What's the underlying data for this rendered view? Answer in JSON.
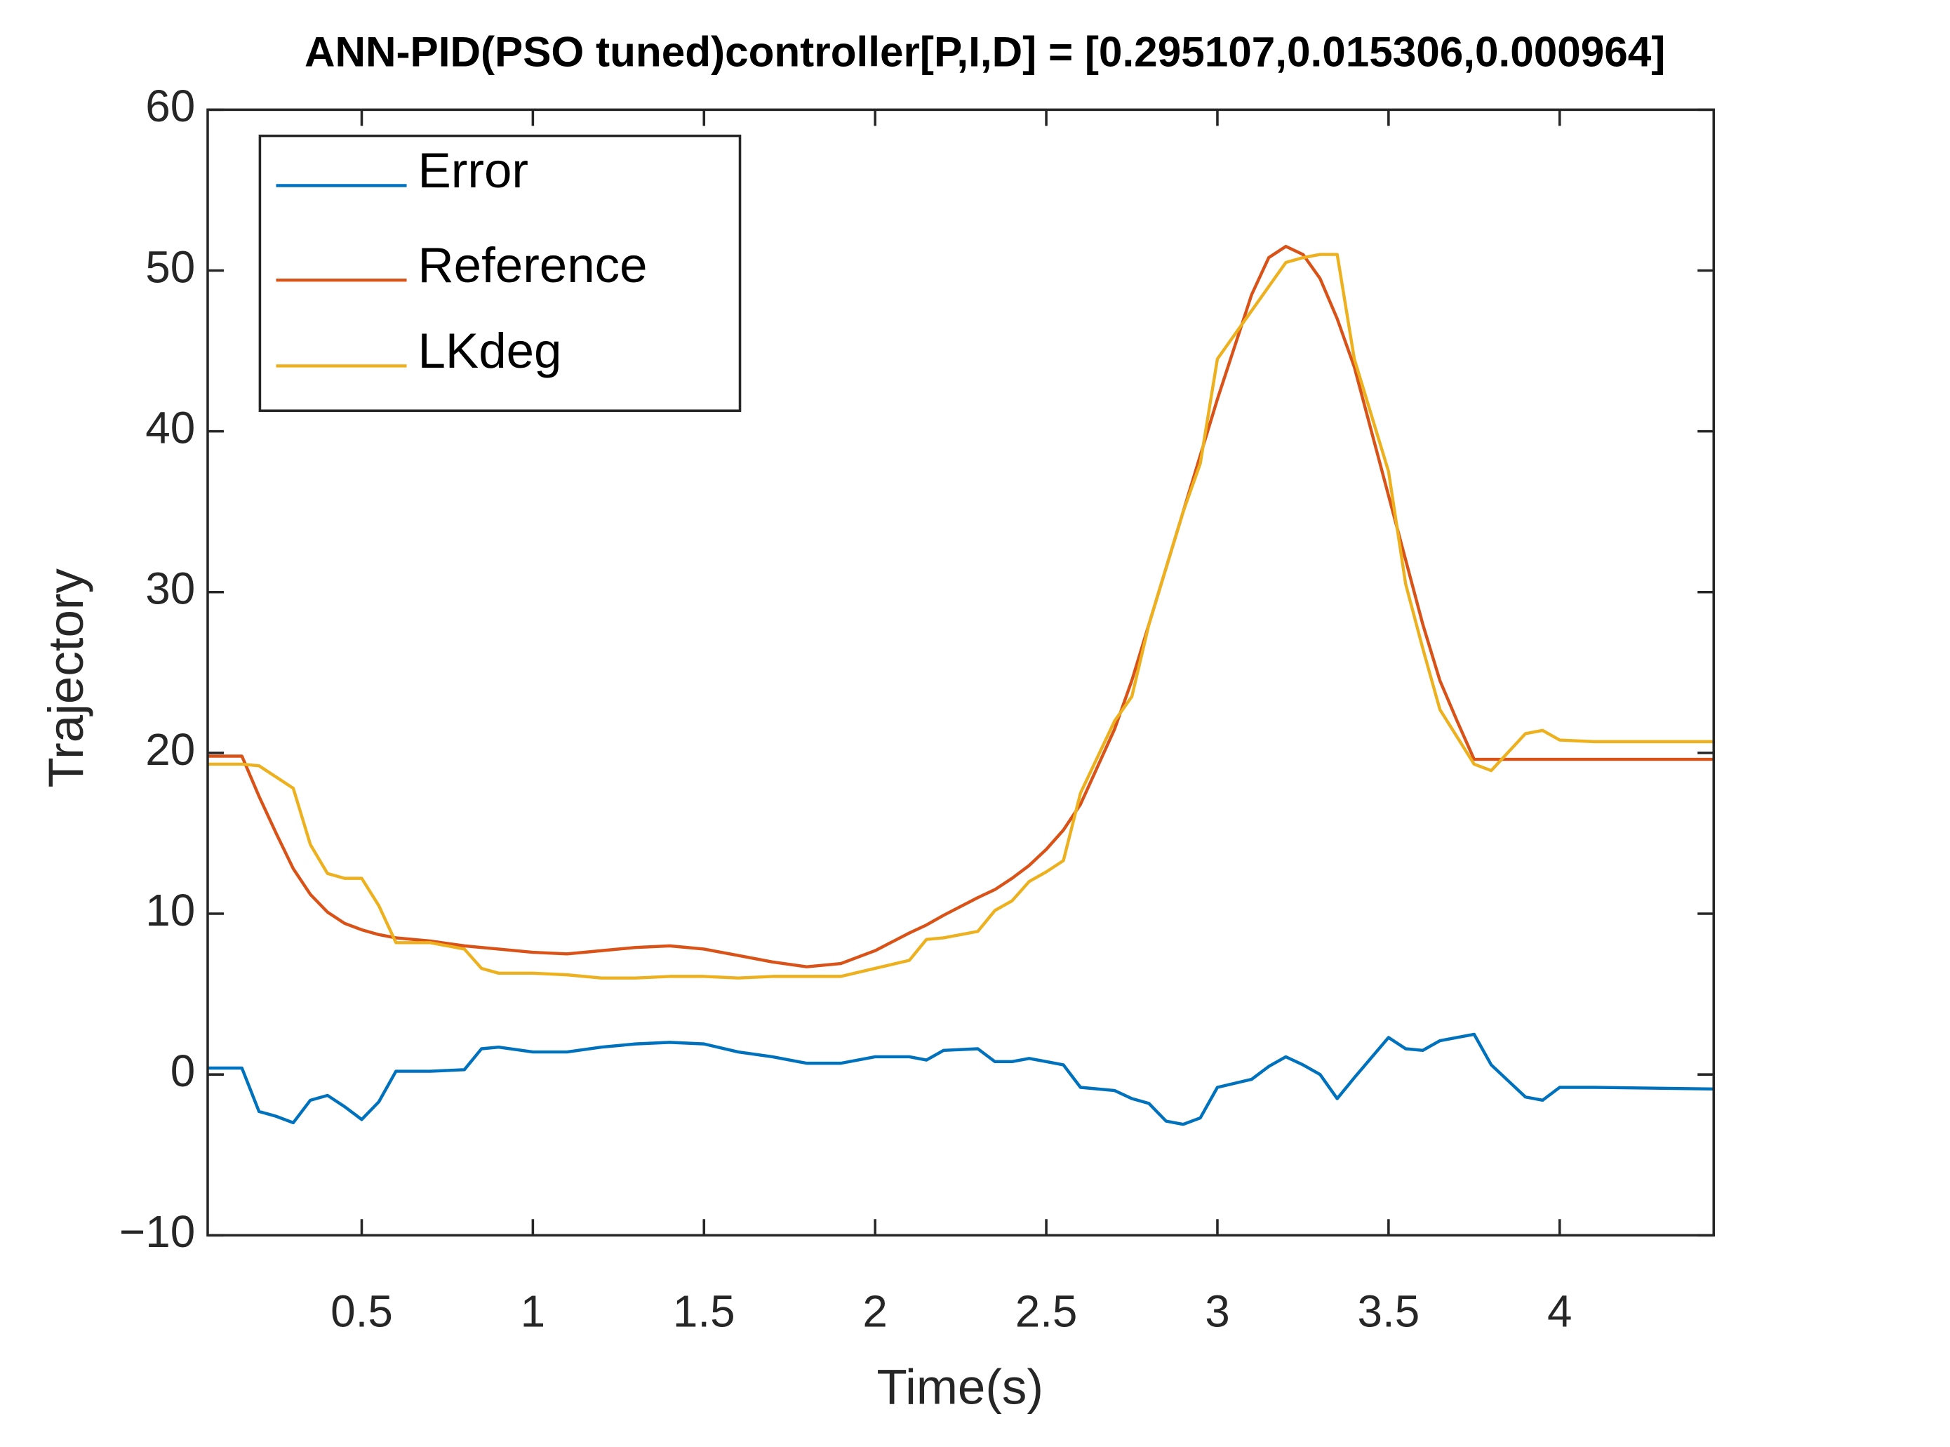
{
  "chart_data": {
    "type": "line",
    "title": "ANN-PID(PSO tuned)controller[P,I,D] = [0.295107,0.015306,0.000964]",
    "x_label": "Time(s)",
    "y_label": "Trajectory",
    "x": [
      0.05,
      0.15,
      0.2,
      0.25,
      0.3,
      0.35,
      0.4,
      0.45,
      0.5,
      0.55,
      0.6,
      0.7,
      0.8,
      0.85,
      0.9,
      1.0,
      1.1,
      1.2,
      1.3,
      1.4,
      1.5,
      1.6,
      1.7,
      1.8,
      1.9,
      2.0,
      2.1,
      2.15,
      2.2,
      2.3,
      2.35,
      2.4,
      2.45,
      2.5,
      2.55,
      2.6,
      2.7,
      2.75,
      2.8,
      2.85,
      2.9,
      2.95,
      3.0,
      3.1,
      3.15,
      3.2,
      3.25,
      3.3,
      3.35,
      3.4,
      3.5,
      3.55,
      3.6,
      3.65,
      3.7,
      3.75,
      3.8,
      3.9,
      3.95,
      4.0,
      4.1,
      4.45
    ],
    "series": [
      {
        "name": "Error",
        "color": "#0072BD",
        "values": [
          0.4,
          0.4,
          -2.3,
          -2.6,
          -3.0,
          -1.6,
          -1.3,
          -2.0,
          -2.8,
          -1.7,
          0.2,
          0.2,
          0.3,
          1.6,
          1.7,
          1.4,
          1.4,
          1.7,
          1.9,
          2.0,
          1.9,
          1.4,
          1.1,
          0.7,
          0.7,
          1.1,
          1.1,
          0.9,
          1.5,
          1.6,
          0.8,
          0.8,
          1.0,
          0.8,
          0.6,
          -0.8,
          -1.0,
          -1.5,
          -1.8,
          -2.9,
          -3.1,
          -2.7,
          -0.8,
          -0.3,
          0.5,
          1.1,
          0.6,
          0.0,
          -1.5,
          -0.2,
          2.3,
          1.6,
          1.5,
          2.1,
          2.3,
          2.5,
          0.6,
          -1.4,
          -1.6,
          -0.8,
          -0.8,
          -0.9
        ]
      },
      {
        "name": "Reference",
        "color": "#D95319",
        "values": [
          19.8,
          19.8,
          17.3,
          15,
          12.8,
          11.2,
          10.1,
          9.4,
          9.0,
          8.7,
          8.5,
          8.3,
          8.0,
          7.9,
          7.8,
          7.6,
          7.5,
          7.7,
          7.9,
          8.0,
          7.8,
          7.4,
          7.0,
          6.7,
          6.9,
          7.7,
          8.8,
          9.3,
          9.9,
          11.0,
          11.5,
          12.2,
          13.0,
          14.0,
          15.2,
          16.8,
          21.5,
          24.5,
          28,
          31.5,
          35,
          38.5,
          42,
          48.5,
          50.8,
          51.5,
          51,
          49.5,
          47,
          44,
          36,
          32,
          28,
          24.5,
          22,
          19.6,
          19.6,
          19.6,
          19.6,
          19.6,
          19.6,
          19.6
        ]
      },
      {
        "name": "LKdeg",
        "color": "#EDB120",
        "values": [
          19.3,
          19.3,
          19.2,
          18.5,
          17.8,
          14.3,
          12.5,
          12.2,
          12.2,
          10.5,
          8.2,
          8.2,
          7.8,
          6.6,
          6.3,
          6.3,
          6.2,
          6.0,
          6.0,
          6.1,
          6.1,
          6.0,
          6.1,
          6.1,
          6.1,
          6.6,
          7.1,
          8.4,
          8.5,
          8.9,
          10.2,
          10.8,
          12.0,
          12.6,
          13.3,
          17.5,
          22,
          23.5,
          28,
          31.5,
          35,
          38,
          44.5,
          47.5,
          49,
          50.5,
          50.8,
          51,
          51,
          44.5,
          37.5,
          30.5,
          26.5,
          22.7,
          21,
          19.3,
          18.9,
          21.2,
          21.4,
          20.8,
          20.7,
          20.7
        ]
      }
    ],
    "xlim": [
      0.05,
      4.45
    ],
    "ylim": [
      -10,
      60
    ],
    "xticks": [
      0.5,
      1,
      1.5,
      2,
      2.5,
      3,
      3.5,
      4
    ],
    "yticks": [
      {
        "value": -10,
        "label": "−10"
      },
      0,
      10,
      20,
      30,
      40,
      50,
      60
    ],
    "grid": false,
    "legend": "upper-left"
  }
}
